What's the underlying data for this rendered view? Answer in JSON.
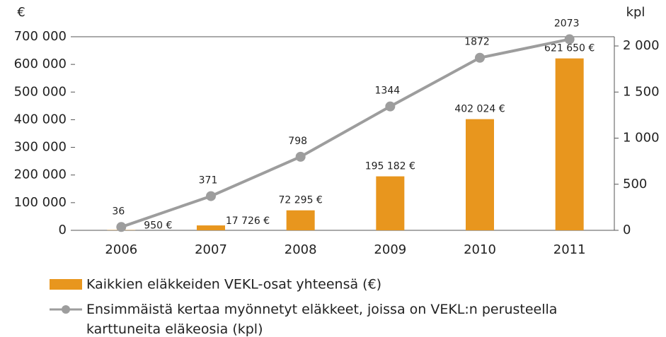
{
  "chart_data": {
    "type": "bar+line",
    "y_unit": "€",
    "y2_unit": "kpl",
    "categories": [
      "2006",
      "2007",
      "2008",
      "2009",
      "2010",
      "2011"
    ],
    "series": [
      {
        "name": "Kaikkien eläkkeiden VEKL-osat yhteensä (€)",
        "type": "bar",
        "color": "#e8961e",
        "values": [
          950,
          17726,
          72295,
          195182,
          402024,
          621650
        ],
        "value_labels": [
          "950 €",
          "17 726 €",
          "72 295 €",
          "195 182 €",
          "402 024 €",
          "621 650 €"
        ]
      },
      {
        "name": "Ensimmäistä kertaa myönnetyt eläkkeet, joissa on VEKL:n perusteella karttuneita eläkeosia (kpl)",
        "type": "line",
        "axis": "y2",
        "color": "#9d9d9d",
        "values": [
          36,
          371,
          798,
          1344,
          1872,
          2073
        ]
      }
    ],
    "ylim": [
      0,
      700000
    ],
    "yticks": [
      0,
      {
        "value": 100000,
        "label": "100 000"
      },
      {
        "value": 200000,
        "label": "200 000"
      },
      {
        "value": 300000,
        "label": "300 000"
      },
      {
        "value": 400000,
        "label": "400 000"
      },
      {
        "value": 500000,
        "label": "500 000"
      },
      {
        "value": 600000,
        "label": "600 000"
      },
      {
        "value": 700000,
        "label": "700 000"
      }
    ],
    "y2lim": [
      0,
      2100
    ],
    "y2ticks": [
      0,
      500,
      {
        "value": 1000,
        "label": "1 000"
      },
      {
        "value": 1500,
        "label": "1 500"
      },
      {
        "value": 2000,
        "label": "2 000"
      }
    ],
    "grid": false
  }
}
